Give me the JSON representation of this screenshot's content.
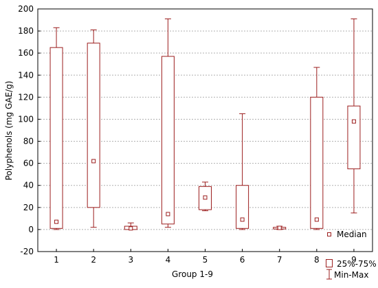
{
  "chart_data": {
    "type": "box",
    "xlabel": "Group 1-9",
    "ylabel": "Polyphenols (mg GAE/g)",
    "ylim": [
      -20,
      200
    ],
    "yticks": [
      -20,
      0,
      20,
      40,
      60,
      80,
      100,
      120,
      140,
      160,
      180,
      200
    ],
    "grid": true,
    "legend_position": "bottom-right",
    "legend": {
      "median": "Median",
      "box": "25%-75%",
      "whisker": "Min-Max"
    },
    "color": "#9b1c1c",
    "categories": [
      "1",
      "2",
      "3",
      "4",
      "5",
      "6",
      "7",
      "8",
      "9"
    ],
    "boxes": [
      {
        "group": "1",
        "min": 0,
        "q1": 1,
        "median": 7,
        "q3": 165,
        "max": 183
      },
      {
        "group": "2",
        "min": 2,
        "q1": 20,
        "median": 62,
        "q3": 169,
        "max": 181
      },
      {
        "group": "3",
        "min": 0,
        "q1": 0,
        "median": 1,
        "q3": 3,
        "max": 6
      },
      {
        "group": "4",
        "min": 2,
        "q1": 5,
        "median": 14,
        "q3": 157,
        "max": 191
      },
      {
        "group": "5",
        "min": 17,
        "q1": 18,
        "median": 29,
        "q3": 39,
        "max": 43
      },
      {
        "group": "6",
        "min": 0,
        "q1": 1,
        "median": 9,
        "q3": 40,
        "max": 105
      },
      {
        "group": "7",
        "min": 0,
        "q1": 0.5,
        "median": 1.5,
        "q3": 2,
        "max": 3
      },
      {
        "group": "8",
        "min": 0,
        "q1": 1,
        "median": 9,
        "q3": 120,
        "max": 147
      },
      {
        "group": "9",
        "min": 15,
        "q1": 55,
        "median": 98,
        "q3": 112,
        "max": 191
      }
    ]
  }
}
